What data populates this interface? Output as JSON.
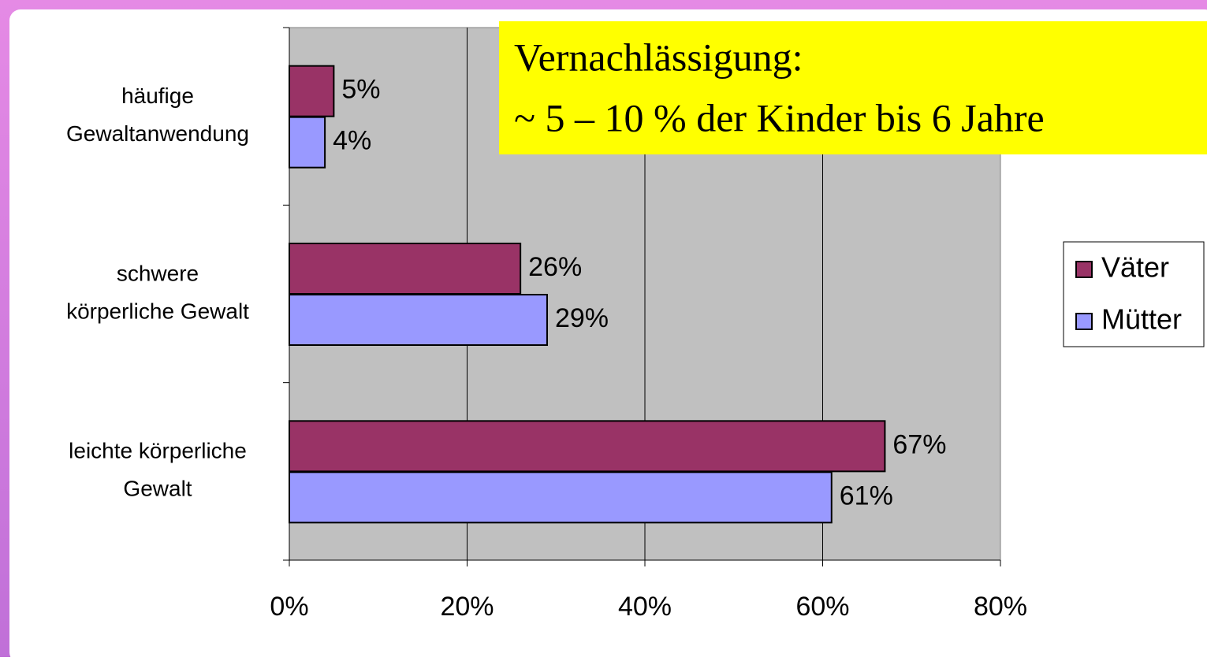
{
  "chart_data": {
    "type": "bar",
    "orientation": "horizontal",
    "categories": [
      [
        "häufige",
        "Gewaltanwendung"
      ],
      [
        "schwere",
        "körperliche Gewalt"
      ],
      [
        "leichte körperliche",
        "Gewalt"
      ]
    ],
    "series": [
      {
        "name": "Väter",
        "color": "#993366",
        "values": [
          5,
          26,
          67
        ],
        "value_labels": [
          "5%",
          "26%",
          "67%"
        ]
      },
      {
        "name": "Mütter",
        "color": "#9999ff",
        "values": [
          4,
          29,
          61
        ],
        "value_labels": [
          "4%",
          "29%",
          "61%"
        ]
      }
    ],
    "xlim": [
      0,
      80
    ],
    "xticks": [
      {
        "value": 0,
        "label": "0%"
      },
      {
        "value": 20,
        "label": "20%"
      },
      {
        "value": 40,
        "label": "40%"
      },
      {
        "value": 60,
        "label": "60%"
      },
      {
        "value": 80,
        "label": "80%"
      }
    ],
    "grid": true,
    "legend": "right",
    "annotation": [
      "Vernachlässigung:",
      "~ 5 – 10 % der Kinder bis 6 Jahre"
    ]
  }
}
